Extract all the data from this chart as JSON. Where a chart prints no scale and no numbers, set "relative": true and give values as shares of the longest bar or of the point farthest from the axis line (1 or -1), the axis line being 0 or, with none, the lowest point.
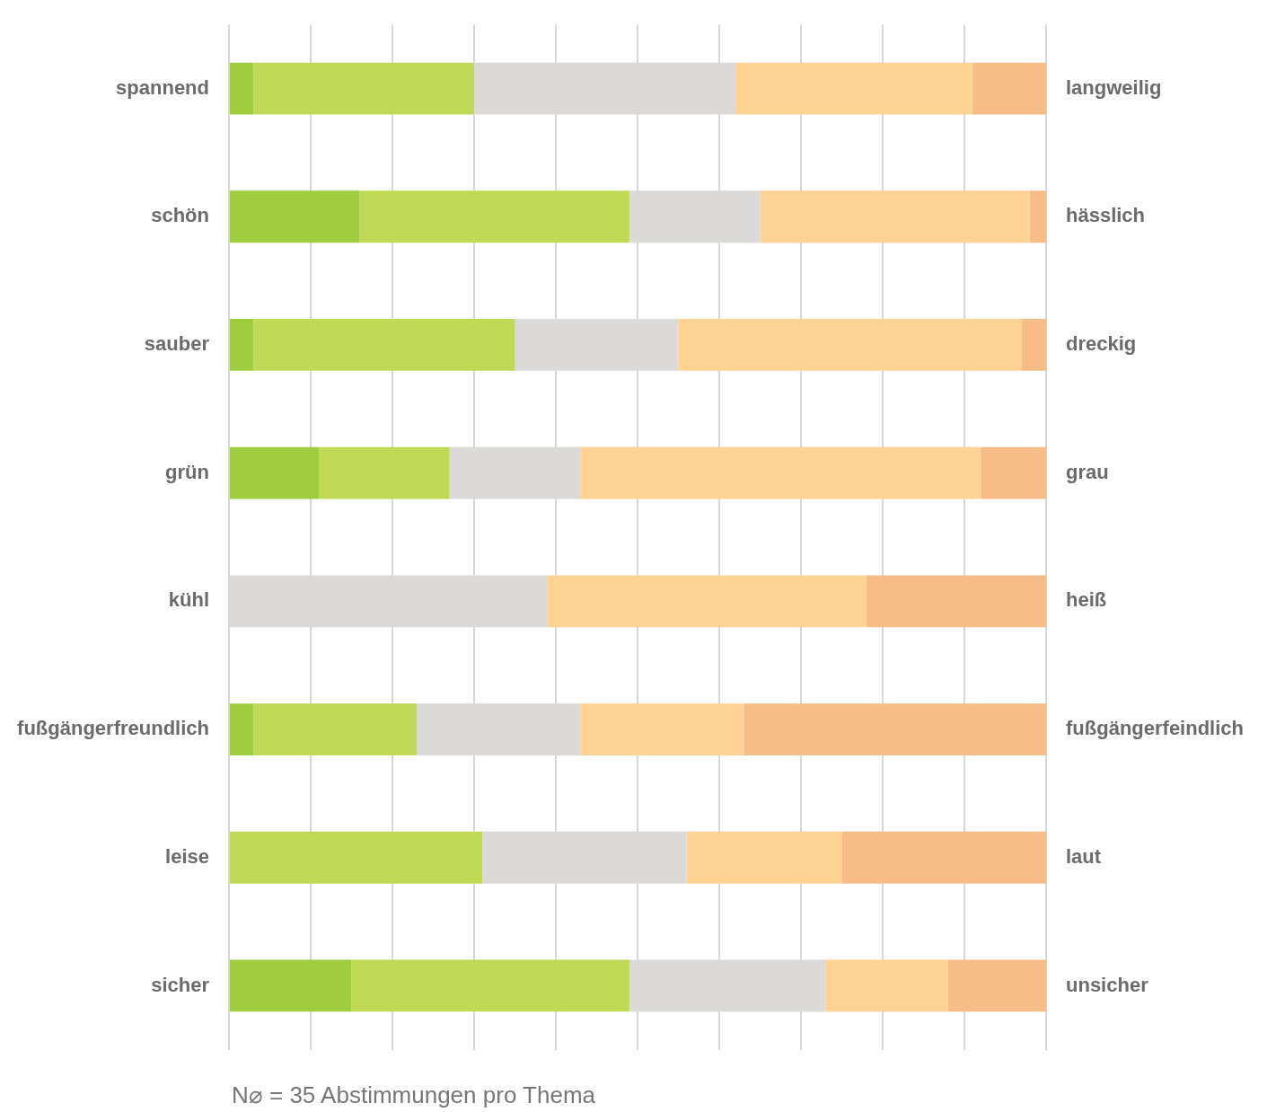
{
  "chart_data": {
    "type": "bar",
    "orientation": "horizontal",
    "stacked": true,
    "relative": true,
    "grid": "x",
    "legend": false,
    "categories": [
      "spannend",
      "schön",
      "sauber",
      "grün",
      "kühl",
      "fußgängerfreundlich",
      "leise",
      "sicher"
    ],
    "y2_categories": [
      "langweilig",
      "hässlich",
      "dreckig",
      "grau",
      "heiß",
      "fußgängerfeindlich",
      "laut",
      "unsicher"
    ],
    "series": [
      {
        "color": "#9fcd3f",
        "values": [
          0.03,
          0.16,
          0.03,
          0.11,
          0,
          0.03,
          0,
          0.15
        ]
      },
      {
        "color": "#c0da56",
        "values": [
          0.27,
          0.33,
          0.32,
          0.16,
          0,
          0.2,
          0.31,
          0.34
        ]
      },
      {
        "color": "#dcdad8",
        "values": [
          0.32,
          0.16,
          0.2,
          0.16,
          0.39,
          0.2,
          0.25,
          0.24
        ]
      },
      {
        "color": "#fed394",
        "values": [
          0.29,
          0.33,
          0.42,
          0.49,
          0.39,
          0.2,
          0.19,
          0.15
        ]
      },
      {
        "color": "#f7bc88",
        "values": [
          0.09,
          0.02,
          0.03,
          0.08,
          0.22,
          0.37,
          0.25,
          0.12
        ]
      }
    ],
    "annotations": [
      "N⌀ = 35 Abstimmungen pro Thema"
    ]
  }
}
